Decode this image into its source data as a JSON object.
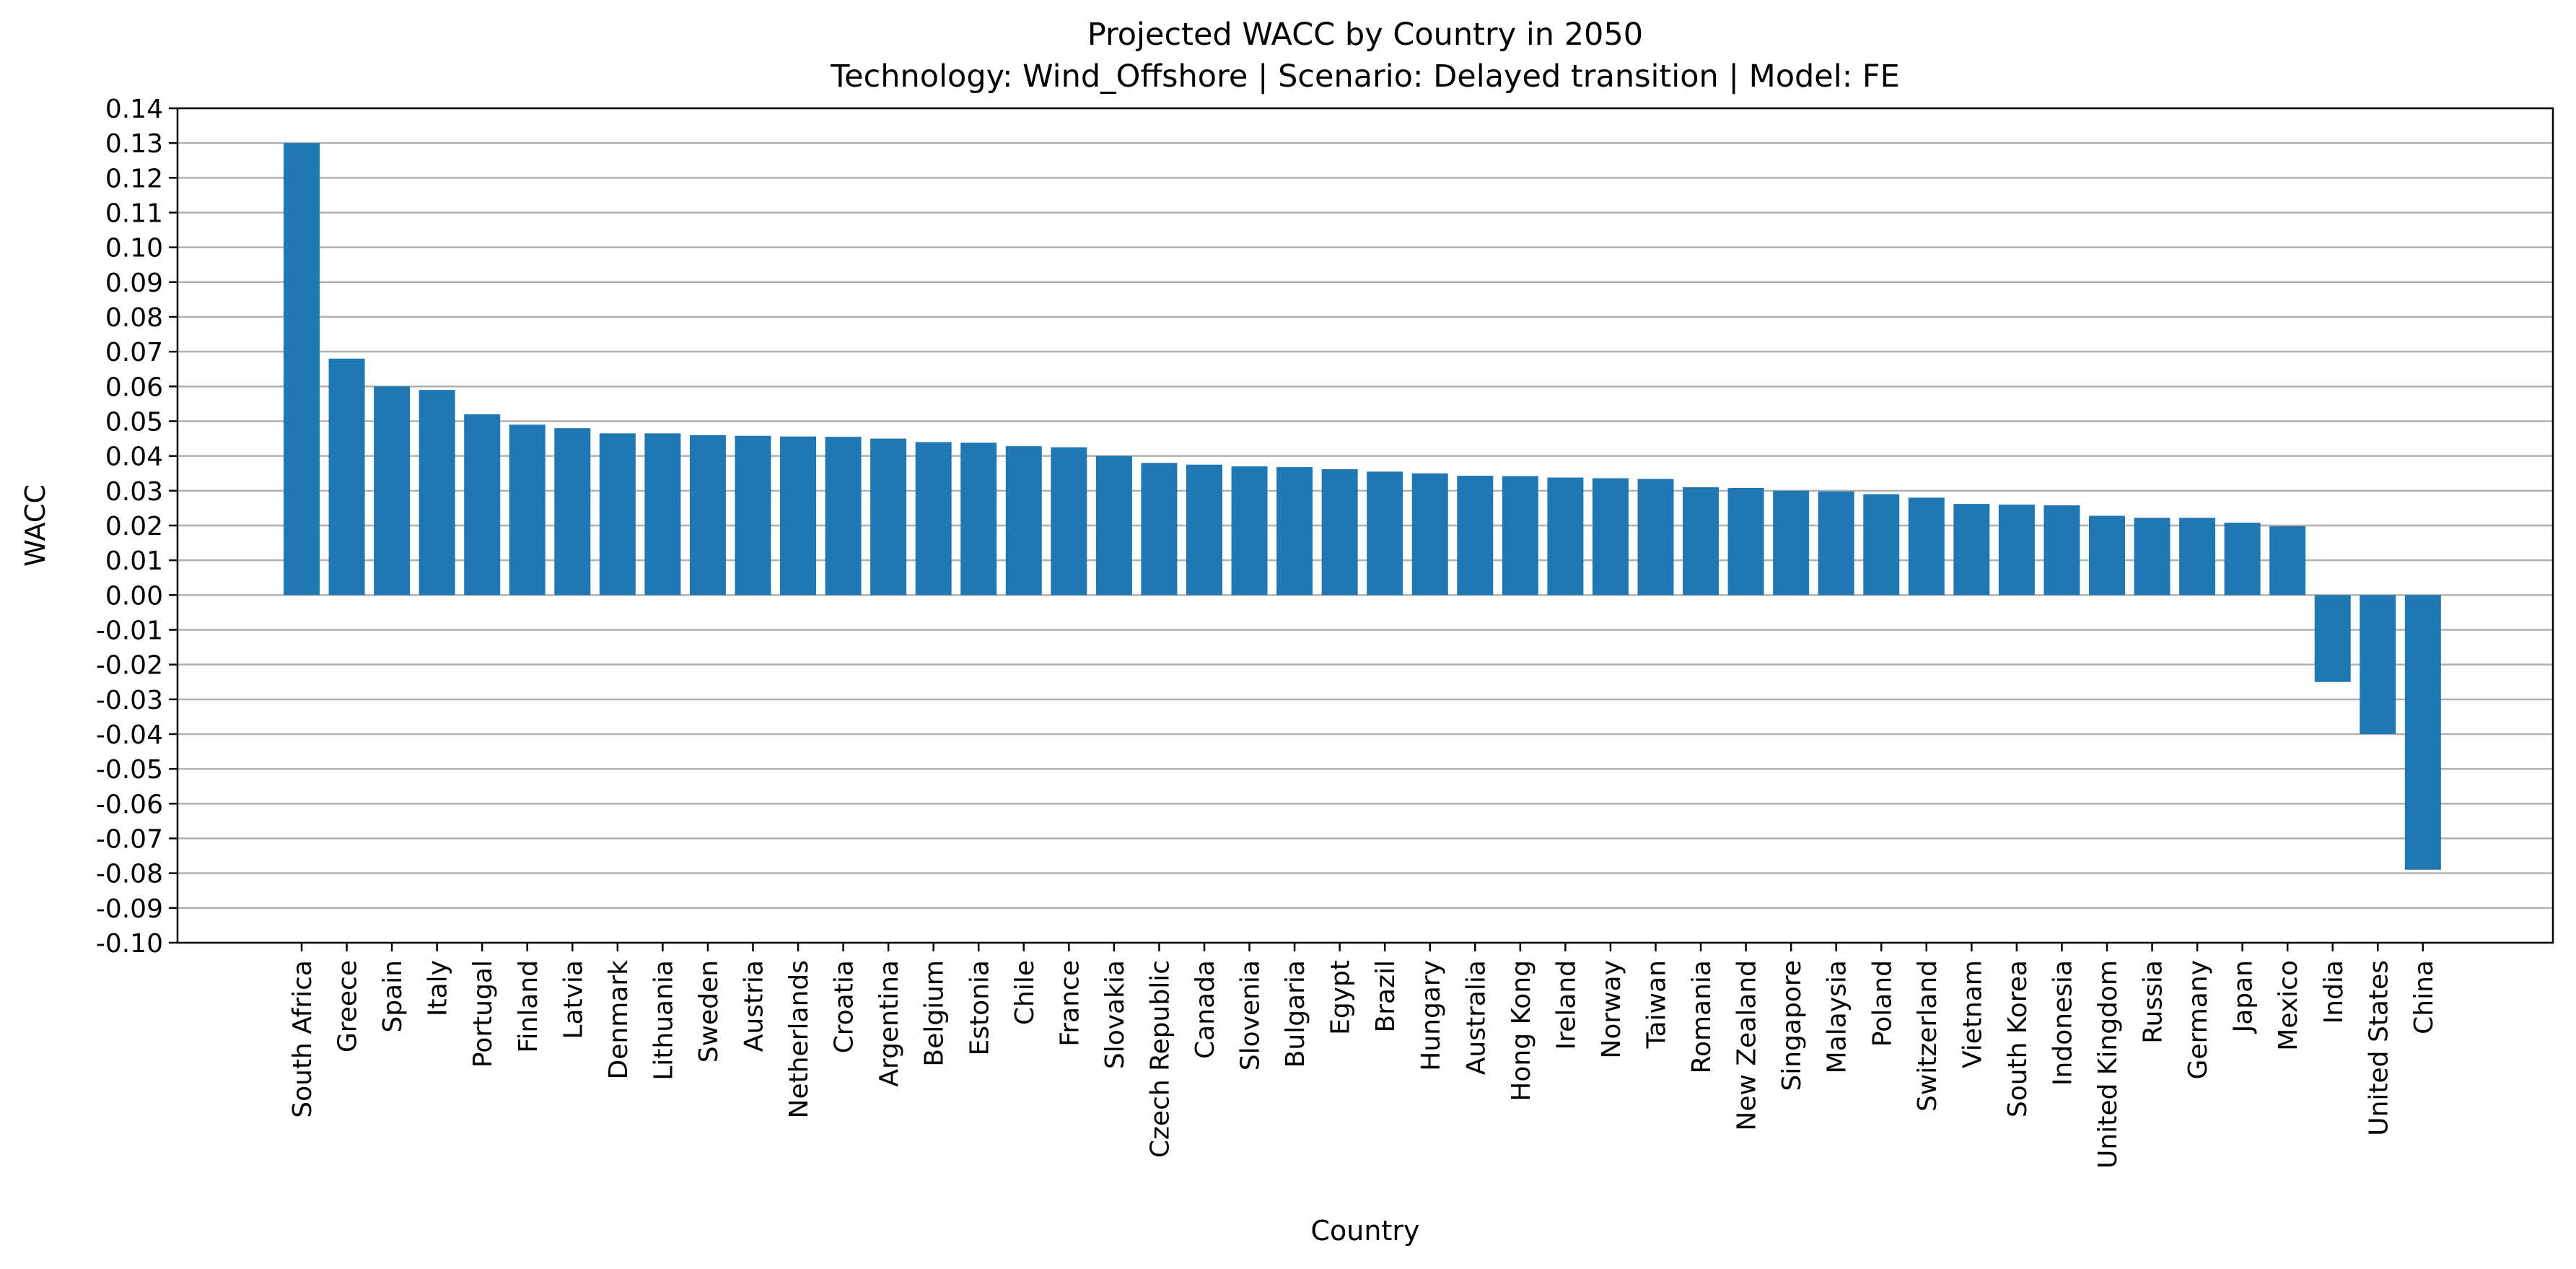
{
  "chart_data": {
    "type": "bar",
    "title": "Projected WACC by Country in 2050",
    "subtitle": "Technology: Wind_Offshore | Scenario: Delayed transition | Model: FE",
    "xlabel": "Country",
    "ylabel": "WACC",
    "ylim": [
      -0.1,
      0.14
    ],
    "yticks": [
      "-0.10",
      "-0.09",
      "-0.08",
      "-0.07",
      "-0.06",
      "-0.05",
      "-0.04",
      "-0.03",
      "-0.02",
      "-0.01",
      "0.00",
      "0.01",
      "0.02",
      "0.03",
      "0.04",
      "0.05",
      "0.06",
      "0.07",
      "0.08",
      "0.09",
      "0.10",
      "0.11",
      "0.12",
      "0.13",
      "0.14"
    ],
    "grid": "horizontal",
    "bar_color": "#1f77b4",
    "categories": [
      "South Africa",
      "Greece",
      "Spain",
      "Italy",
      "Portugal",
      "Finland",
      "Latvia",
      "Denmark",
      "Lithuania",
      "Sweden",
      "Austria",
      "Netherlands",
      "Croatia",
      "Argentina",
      "Belgium",
      "Estonia",
      "Chile",
      "France",
      "Slovakia",
      "Czech Republic",
      "Canada",
      "Slovenia",
      "Bulgaria",
      "Egypt",
      "Brazil",
      "Hungary",
      "Australia",
      "Hong Kong",
      "Ireland",
      "Norway",
      "Taiwan",
      "Romania",
      "New Zealand",
      "Singapore",
      "Malaysia",
      "Poland",
      "Switzerland",
      "Vietnam",
      "South Korea",
      "Indonesia",
      "United Kingdom",
      "Russia",
      "Germany",
      "Japan",
      "Mexico",
      "India",
      "United States",
      "China"
    ],
    "values": [
      0.13,
      0.068,
      0.06,
      0.059,
      0.052,
      0.049,
      0.048,
      0.0465,
      0.0465,
      0.046,
      0.0458,
      0.0456,
      0.0455,
      0.045,
      0.044,
      0.0438,
      0.0428,
      0.0425,
      0.04,
      0.038,
      0.0375,
      0.037,
      0.0368,
      0.0362,
      0.0355,
      0.035,
      0.0343,
      0.0342,
      0.0338,
      0.0336,
      0.0334,
      0.031,
      0.0308,
      0.03,
      0.0298,
      0.029,
      0.028,
      0.0262,
      0.026,
      0.0258,
      0.0228,
      0.0222,
      0.0222,
      0.0208,
      0.0198,
      -0.025,
      -0.04,
      -0.079
    ]
  }
}
